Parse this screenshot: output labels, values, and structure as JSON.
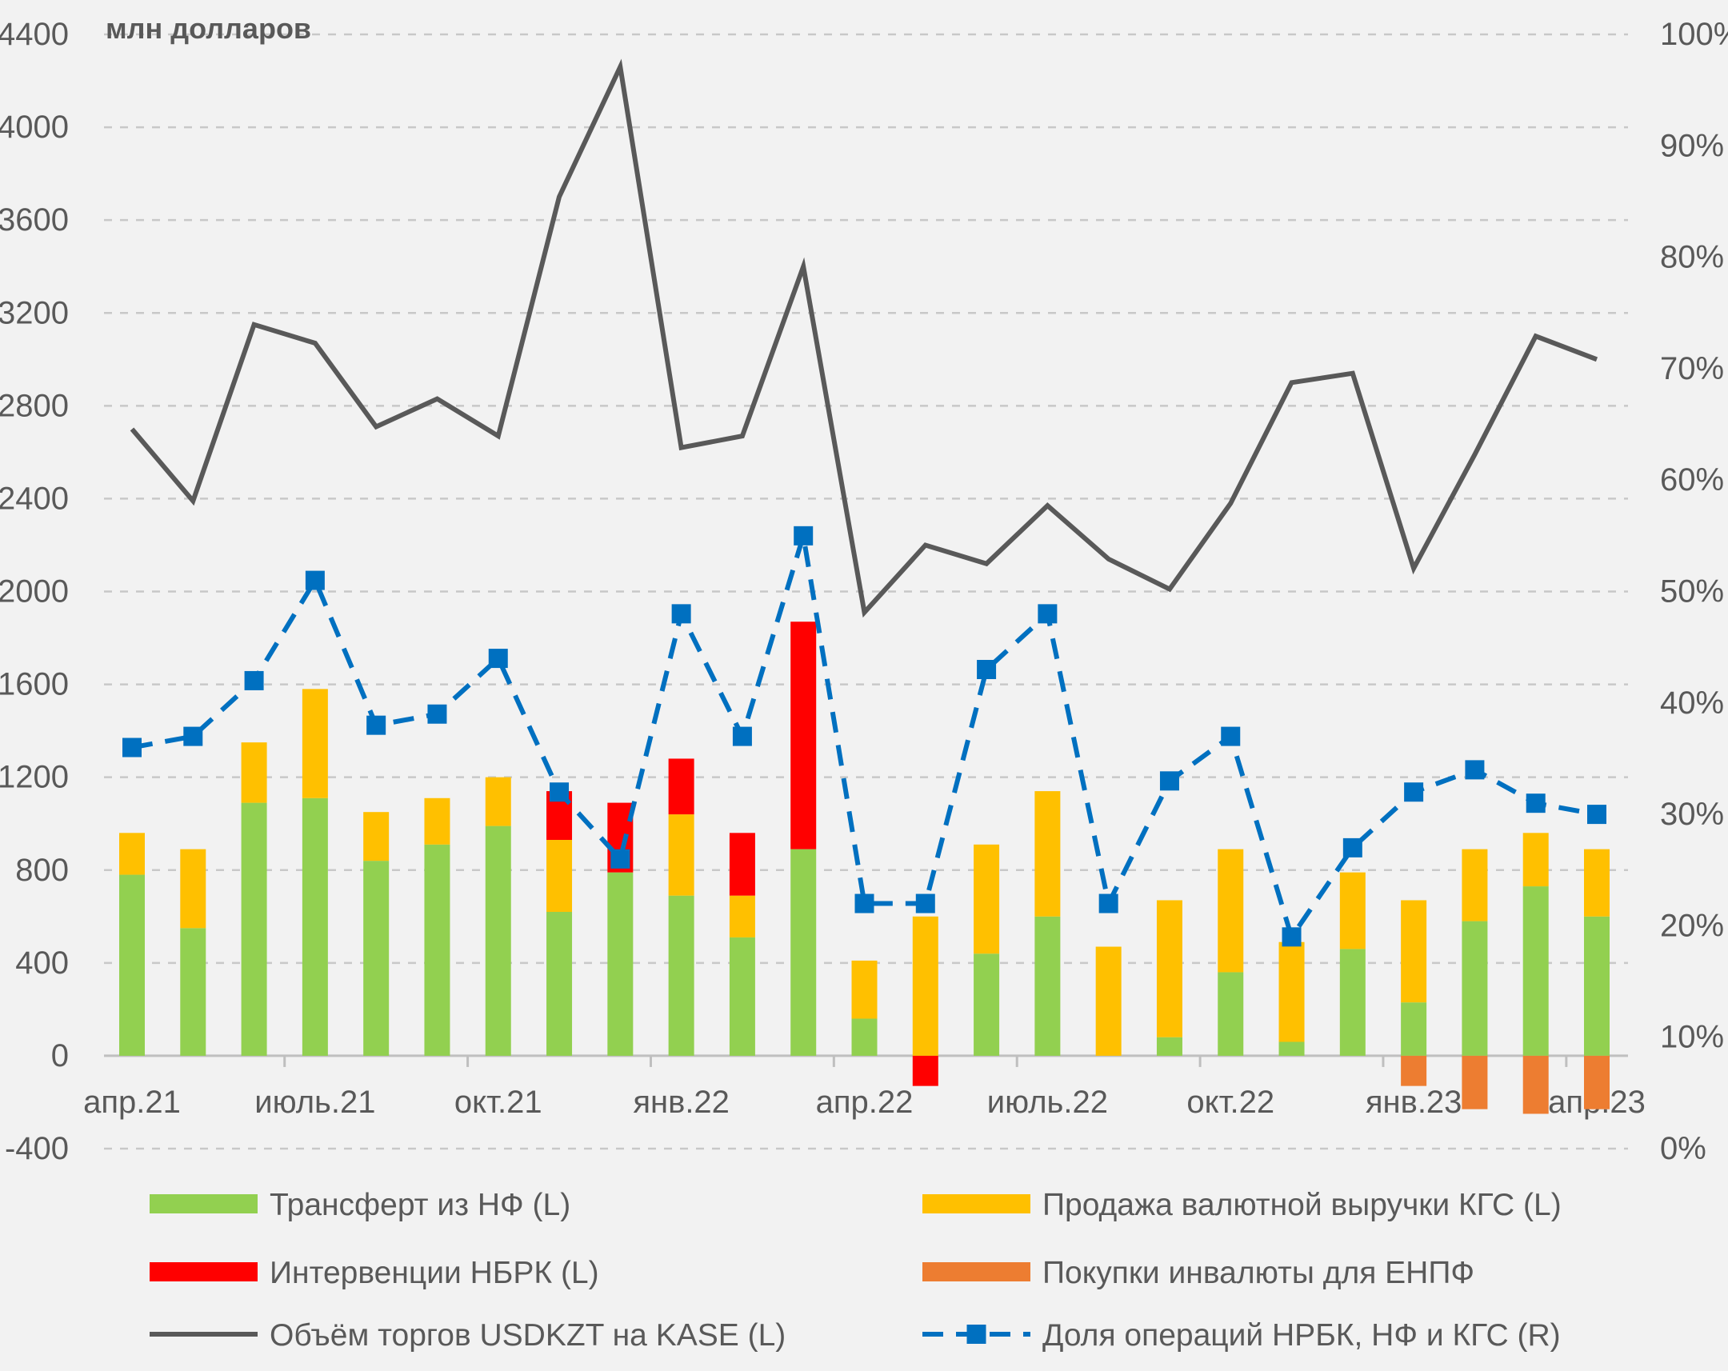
{
  "chart_data": {
    "type": "bar",
    "unit_label": "млн долларов",
    "categories": [
      "апр.21",
      "май.21",
      "июнь.21",
      "июль.21",
      "авг.21",
      "сен.21",
      "окт.21",
      "ноя.21",
      "дек.21",
      "янв.22",
      "фев.22",
      "мар.22",
      "апр.22",
      "май.22",
      "июнь.22",
      "июль.22",
      "авг.22",
      "сен.22",
      "окт.22",
      "ноя.22",
      "дек.22",
      "янв.23",
      "фев.23",
      "мар.23",
      "апр.23"
    ],
    "x_tick_labels": [
      {
        "label": "апр.21",
        "index": 0
      },
      {
        "label": "июль.21",
        "index": 3
      },
      {
        "label": "окт.21",
        "index": 6
      },
      {
        "label": "янв.22",
        "index": 9
      },
      {
        "label": "апр.22",
        "index": 12
      },
      {
        "label": "июль.22",
        "index": 15
      },
      {
        "label": "окт.22",
        "index": 18
      },
      {
        "label": "янв.23",
        "index": 21
      },
      {
        "label": "апр.23",
        "index": 24
      }
    ],
    "y_left": {
      "min": -400,
      "max": 4400,
      "step": 400,
      "ticks": [
        "-400",
        "0",
        "400",
        "800",
        "1200",
        "1600",
        "2000",
        "2400",
        "2800",
        "3200",
        "3600",
        "4000",
        "4400"
      ]
    },
    "y_right": {
      "min": 0,
      "max": 100,
      "ticks": [
        "0%",
        "10%",
        "20%",
        "30%",
        "40%",
        "50%",
        "60%",
        "70%",
        "80%",
        "90%",
        "100%"
      ]
    },
    "grid": true,
    "stacked_series": [
      {
        "name": "Трансферт из НФ (L)",
        "color": "#92d050",
        "values": [
          780,
          550,
          1090,
          1110,
          840,
          910,
          990,
          620,
          790,
          690,
          510,
          890,
          160,
          0,
          440,
          600,
          0,
          80,
          360,
          60,
          460,
          230,
          580,
          730,
          600
        ]
      },
      {
        "name": "Продажа валютной выручки КГС (L)",
        "color": "#ffc000",
        "values": [
          180,
          340,
          260,
          470,
          210,
          200,
          210,
          310,
          0,
          350,
          180,
          0,
          250,
          600,
          470,
          540,
          470,
          590,
          530,
          430,
          330,
          440,
          310,
          230,
          290
        ]
      },
      {
        "name": "Интервенции НБРК (L)",
        "color": "#ff0000",
        "values": [
          0,
          0,
          0,
          0,
          0,
          0,
          0,
          210,
          300,
          240,
          270,
          980,
          0,
          -130,
          0,
          0,
          0,
          0,
          0,
          0,
          0,
          0,
          0,
          0,
          0
        ]
      },
      {
        "name": "Покупки инвалюты для ЕНПФ (L)",
        "color": "#ed7d31",
        "values": [
          0,
          0,
          0,
          0,
          0,
          0,
          0,
          0,
          0,
          0,
          0,
          0,
          0,
          0,
          0,
          0,
          0,
          0,
          0,
          0,
          0,
          -130,
          -230,
          -250,
          -230
        ]
      }
    ],
    "line_series": [
      {
        "name": "Объём торгов USDKZT на KASE (L)",
        "color": "#595959",
        "axis": "left",
        "values": [
          2700,
          2390,
          3150,
          3070,
          2710,
          2830,
          2670,
          3700,
          4260,
          2620,
          2670,
          3400,
          1910,
          2200,
          2120,
          2370,
          2140,
          2010,
          2380,
          2900,
          2940,
          2100,
          2590,
          3100,
          3000
        ]
      },
      {
        "name": "Доля операций НРБК, НФ и КГС (R)",
        "color": "#0070c0",
        "axis": "right",
        "values": [
          36,
          37,
          42,
          51,
          38,
          39,
          44,
          32,
          26,
          48,
          37,
          55,
          22,
          22,
          43,
          48,
          22,
          33,
          37,
          19,
          27,
          32,
          34,
          31,
          30
        ]
      }
    ],
    "legend": {
      "placement": "bottom",
      "items": [
        {
          "label": "Трансферт из НФ (L)",
          "color": "#92d050",
          "kind": "bar"
        },
        {
          "label": "Продажа валютной выручки КГС (L)",
          "color": "#ffc000",
          "kind": "bar"
        },
        {
          "label": "Интервенции НБРК (L)",
          "color": "#ff0000",
          "kind": "bar"
        },
        {
          "label": "Покупки инвалюты для ЕНПФ",
          "color": "#ed7d31",
          "kind": "bar"
        },
        {
          "label": "Объём торгов USDKZT на KASE (L)",
          "color": "#595959",
          "kind": "line"
        },
        {
          "label": "Доля операций НРБК, НФ и КГС (R)",
          "color": "#0070c0",
          "kind": "dashed-marker"
        }
      ]
    }
  }
}
